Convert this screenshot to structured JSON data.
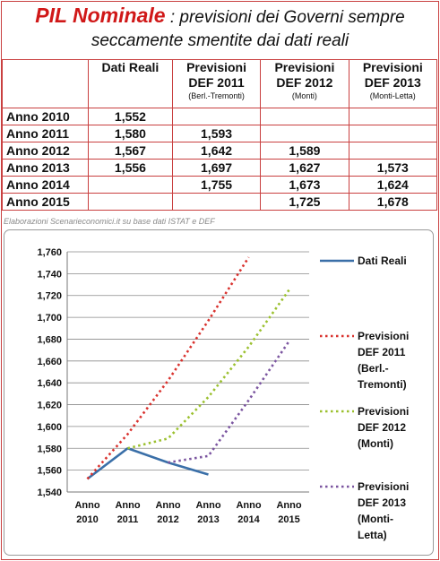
{
  "title": {
    "highlight": "PIL Nominale",
    "rest": " : previsioni dei Governi sempre",
    "line2": "seccamente smentite dai dati reali"
  },
  "table": {
    "headers": [
      {
        "label": "Dati Reali",
        "label2": "",
        "sub": ""
      },
      {
        "label": "Previsioni",
        "label2": "DEF 2011",
        "sub": "(Berl.-Tremonti)"
      },
      {
        "label": "Previsioni",
        "label2": "DEF 2012",
        "sub": "(Monti)"
      },
      {
        "label": "Previsioni",
        "label2": "DEF 2013",
        "sub": "(Monti-Letta)"
      }
    ],
    "rows": [
      {
        "label": "Anno 2010",
        "cells": [
          "1,552",
          "",
          "",
          ""
        ]
      },
      {
        "label": "Anno 2011",
        "cells": [
          "1,580",
          "1,593",
          "",
          ""
        ]
      },
      {
        "label": "Anno 2012",
        "cells": [
          "1,567",
          "1,642",
          "1,589",
          ""
        ]
      },
      {
        "label": "Anno 2013",
        "cells": [
          "1,556",
          "1,697",
          "1,627",
          "1,573"
        ]
      },
      {
        "label": "Anno 2014",
        "cells": [
          "",
          "1,755",
          "1,673",
          "1,624"
        ]
      },
      {
        "label": "Anno 2015",
        "cells": [
          "",
          "",
          "1,725",
          "1,678"
        ]
      }
    ]
  },
  "source": "Elaborazioni Scenarieconomici.it su base dati ISTAT e DEF",
  "chart_data": {
    "type": "line",
    "categories": [
      "Anno 2010",
      "Anno 2011",
      "Anno 2012",
      "Anno 2013",
      "Anno 2014",
      "Anno 2015"
    ],
    "ylim": [
      1540,
      1760
    ],
    "yticks": [
      1540,
      1560,
      1580,
      1600,
      1620,
      1640,
      1660,
      1680,
      1700,
      1720,
      1740,
      1760
    ],
    "ytick_labels": [
      "1,540",
      "1,560",
      "1,580",
      "1,600",
      "1,620",
      "1,640",
      "1,660",
      "1,680",
      "1,700",
      "1,720",
      "1,740",
      "1,760"
    ],
    "grid": true,
    "legend_position": "right",
    "series": [
      {
        "name": "Dati Reali",
        "legend_lines": [
          "Dati Reali"
        ],
        "style": "solid",
        "color": "#3a6fa8",
        "values": [
          1552,
          1580,
          1567,
          1556,
          null,
          null
        ]
      },
      {
        "name": "Previsioni DEF 2011 (Berl.-Tremonti)",
        "legend_lines": [
          "Previsioni",
          "DEF 2011",
          "(Berl.-",
          "Tremonti)"
        ],
        "style": "dotted",
        "color": "#d9322e",
        "values": [
          1552,
          1593,
          1642,
          1697,
          1755,
          null
        ]
      },
      {
        "name": "Previsioni DEF 2012 (Monti)",
        "legend_lines": [
          "Previsioni",
          "DEF 2012",
          "(Monti)"
        ],
        "style": "dotted",
        "color": "#9bc02e",
        "values": [
          null,
          1580,
          1589,
          1627,
          1673,
          1725
        ]
      },
      {
        "name": "Previsioni DEF 2013 (Monti-Letta)",
        "legend_lines": [
          "Previsioni",
          "DEF 2013",
          "(Monti-",
          "Letta)"
        ],
        "style": "dotted",
        "color": "#7b55a0",
        "values": [
          null,
          null,
          1567,
          1573,
          1624,
          1678
        ]
      }
    ]
  }
}
